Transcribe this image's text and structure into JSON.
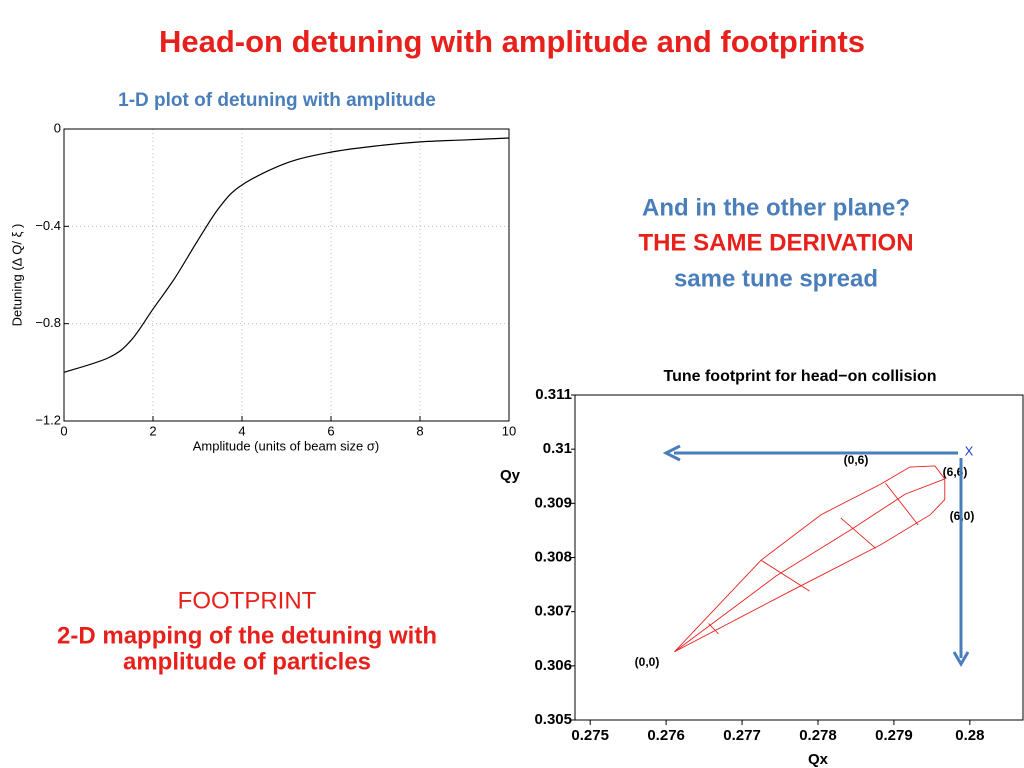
{
  "title": "Head-on detuning with amplitude and footprints",
  "side_text": {
    "line1": "And in the other plane?",
    "line2": "THE SAME DERIVATION",
    "line3": "same tune spread"
  },
  "footprint_text": {
    "heading": "FOOTPRINT",
    "line1": "2-D mapping of the detuning with",
    "line2": "amplitude of particles"
  },
  "chart_data": [
    {
      "type": "line",
      "title": "1-D plot of detuning with amplitude",
      "x_label": "Amplitude (units of beam size σ)",
      "y_label": "Detuning (Δ Q/ ξ )",
      "x": [
        0,
        1,
        1.5,
        2,
        2.5,
        3,
        3.5,
        4,
        5,
        6,
        7,
        8,
        9,
        10
      ],
      "values": [
        -1.0,
        -0.94,
        -0.87,
        -0.74,
        -0.61,
        -0.46,
        -0.32,
        -0.23,
        -0.14,
        -0.095,
        -0.07,
        -0.053,
        -0.045,
        -0.037
      ],
      "color": "#000000",
      "xlim": [
        0,
        10
      ],
      "ylim": [
        -1.2,
        0
      ],
      "xticks": [
        0,
        2,
        4,
        6,
        8,
        10
      ],
      "yticks": [
        {
          "value": -1.2,
          "label": "−1.2"
        },
        {
          "value": -0.8,
          "label": "−0.8"
        },
        {
          "value": -0.4,
          "label": "−0.4"
        },
        0
      ],
      "grid": true
    },
    {
      "type": "line",
      "title": "Tune footprint for head−on collision",
      "x_label": "Qx",
      "y_label": "Qy",
      "series": [
        {
          "color": "#e8201c",
          "x": [
            0.27611,
            0.27725,
            0.27804,
            0.27882,
            0.27921,
            0.27954,
            0.27967,
            0.27967
          ],
          "values": [
            0.30626,
            0.30795,
            0.30879,
            0.30935,
            0.30967,
            0.30969,
            0.30945,
            0.30907
          ]
        },
        {
          "color": "#e8201c",
          "x": [
            0.27611,
            0.27764,
            0.27882,
            0.27948,
            0.27967
          ],
          "values": [
            0.30626,
            0.30738,
            0.30823,
            0.30879,
            0.30907
          ]
        },
        {
          "color": "#e8201c",
          "x": [
            0.27611,
            0.27745,
            0.27843,
            0.27915,
            0.27967
          ],
          "values": [
            0.30626,
            0.30766,
            0.30851,
            0.30917,
            0.30945
          ]
        },
        {
          "color": "#e8201c",
          "x": [
            0.27656,
            0.27669
          ],
          "values": [
            0.30678,
            0.30659
          ]
        },
        {
          "color": "#e8201c",
          "x": [
            0.27725,
            0.27789
          ],
          "values": [
            0.30795,
            0.30738
          ]
        },
        {
          "color": "#e8201c",
          "x": [
            0.2783,
            0.27876
          ],
          "values": [
            0.30873,
            0.30817
          ]
        },
        {
          "color": "#e8201c",
          "x": [
            0.27889,
            0.27932
          ],
          "values": [
            0.30937,
            0.3086
          ]
        }
      ],
      "annotations": {
        "a00": "(0,0)",
        "a06": "(0,6)",
        "a66": "(6,6)",
        "a60": "(6,0)",
        "x": "X"
      },
      "xlim": [
        0.2748,
        0.2807
      ],
      "ylim": [
        0.305,
        0.311
      ],
      "xticks": [
        0.275,
        0.276,
        0.277,
        0.278,
        0.279,
        0.28
      ],
      "yticks": [
        0.305,
        0.306,
        0.307,
        0.308,
        0.309,
        0.31,
        0.311
      ],
      "grid": false
    }
  ]
}
